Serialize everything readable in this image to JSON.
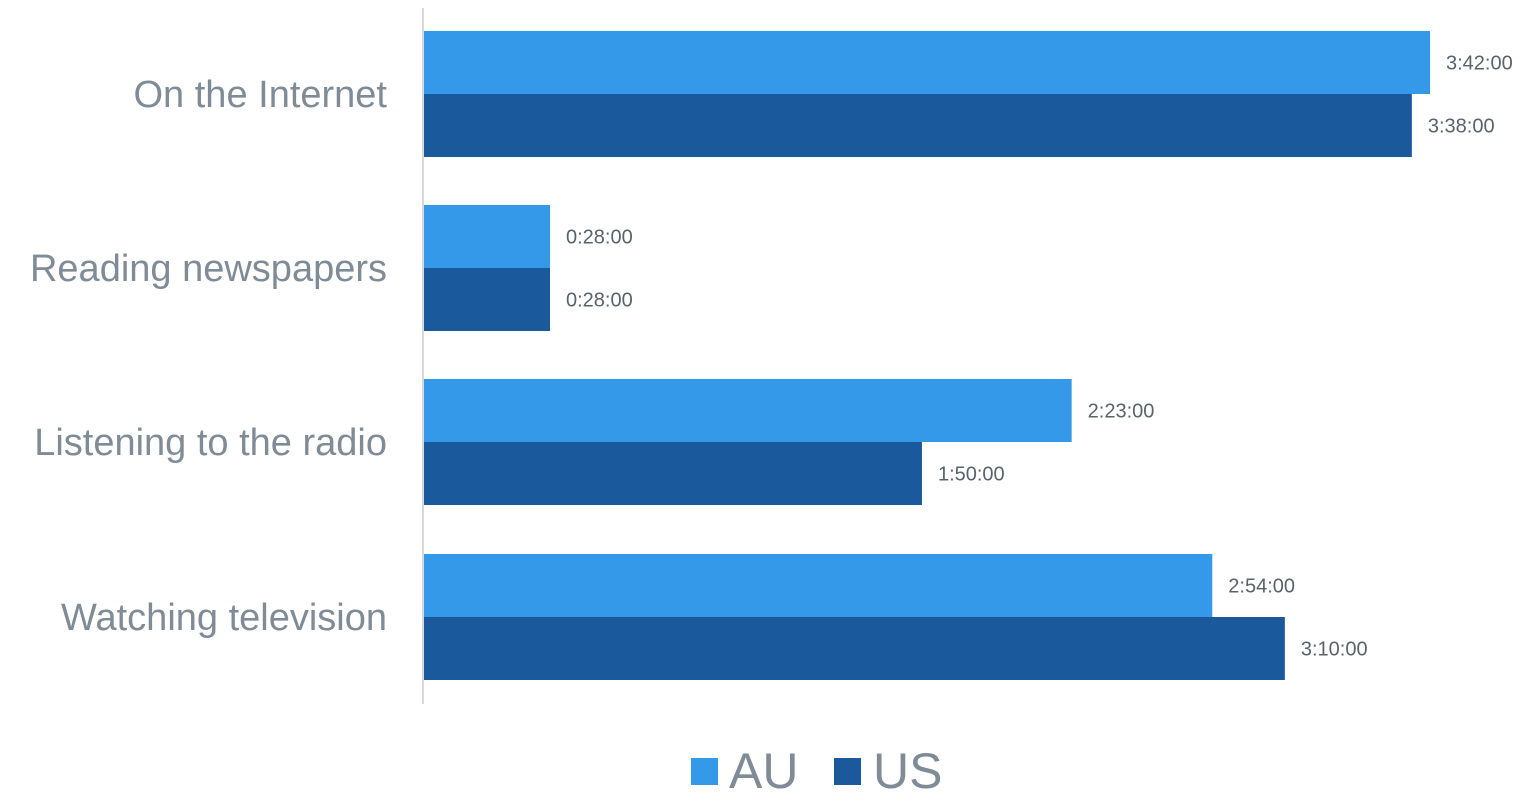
{
  "chart_data": {
    "type": "bar",
    "orientation": "horizontal",
    "categories": [
      "On the Internet",
      "Reading newspapers",
      "Listening to the radio",
      "Watching television"
    ],
    "series": [
      {
        "name": "AU",
        "color": "#3399e8",
        "values_minutes": [
          222,
          28,
          143,
          174
        ],
        "labels": [
          "3:42:00",
          "0:28:00",
          "2:23:00",
          "2:54:00"
        ]
      },
      {
        "name": "US",
        "color": "#1a5a9c",
        "values_minutes": [
          218,
          28,
          110,
          190
        ],
        "labels": [
          "3:38:00",
          "0:28:00",
          "1:50:00",
          "3:10:00"
        ]
      }
    ],
    "x_unit": "minutes",
    "x_range_minutes": [
      0,
      250
    ],
    "gridlines": false,
    "axis_color": "#d9d9d9",
    "legend_position": "bottom",
    "title": "",
    "xlabel": "",
    "ylabel": ""
  }
}
